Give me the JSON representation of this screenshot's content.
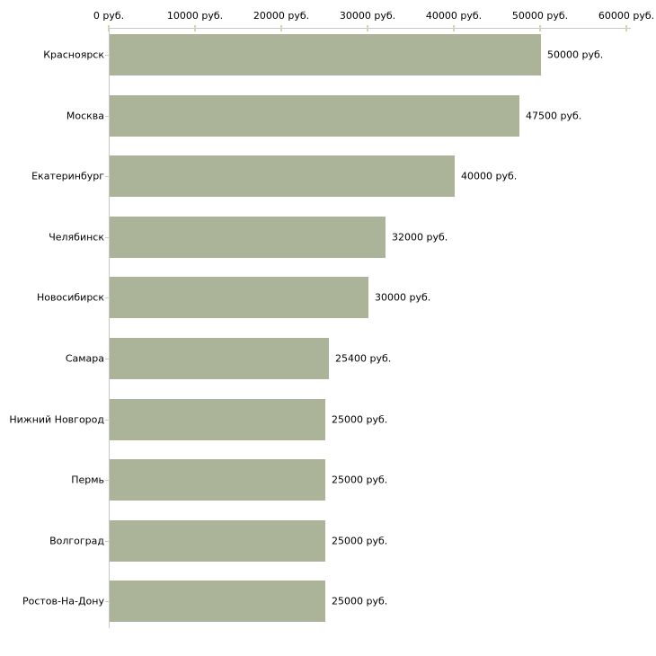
{
  "chart_data": {
    "type": "bar",
    "orientation": "horizontal",
    "title": "",
    "categories": [
      "Красноярск",
      "Москва",
      "Екатеринбург",
      "Челябинск",
      "Новосибирск",
      "Самара",
      "Нижний Новгород",
      "Пермь",
      "Волгоград",
      "Ростов-На-Дону"
    ],
    "values": [
      50000,
      47500,
      40000,
      32000,
      30000,
      25400,
      25000,
      25000,
      25000,
      25000
    ],
    "value_labels": [
      "50000 руб.",
      "47500 руб.",
      "40000 руб.",
      "32000 руб.",
      "30000 руб.",
      "25400 руб.",
      "25000 руб.",
      "25000 руб.",
      "25000 руб.",
      "25000 руб."
    ],
    "unit": "руб.",
    "x_axis": {
      "position": "top",
      "range": [
        0,
        60000
      ],
      "tick_values": [
        0,
        10000,
        20000,
        30000,
        40000,
        50000,
        60000
      ],
      "tick_labels": [
        "0 руб.",
        "10000 руб.",
        "20000 руб.",
        "30000 руб.",
        "40000 руб.",
        "50000 руб.",
        "60000 руб."
      ]
    },
    "grid": false,
    "legend": false,
    "colors": {
      "bar": "#abb398",
      "axis_line": "#c8c8c8",
      "x_tick": "#d4d6ab",
      "y_tick": "#d8c7c1",
      "text": "#000000",
      "background": "#ffffff"
    }
  }
}
